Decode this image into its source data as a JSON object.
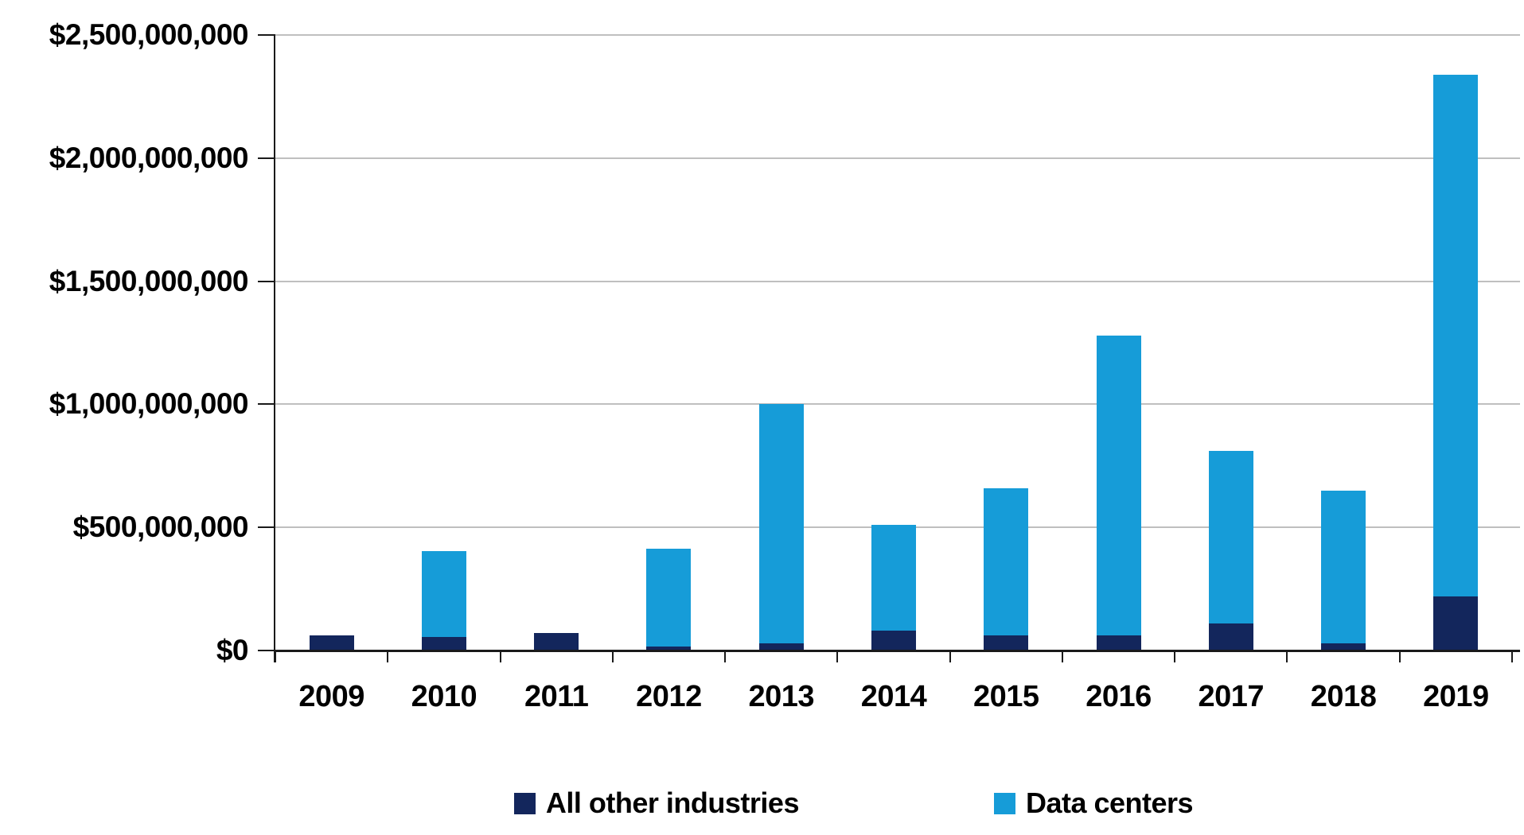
{
  "chart_data": {
    "type": "bar",
    "stacked": true,
    "categories": [
      "2009",
      "2010",
      "2011",
      "2012",
      "2013",
      "2014",
      "2015",
      "2016",
      "2017",
      "2018",
      "2019"
    ],
    "series": [
      {
        "name": "All other industries",
        "color": "#13265C",
        "values_usd": [
          60000000,
          55000000,
          70000000,
          15000000,
          30000000,
          80000000,
          60000000,
          60000000,
          110000000,
          30000000,
          220000000
        ]
      },
      {
        "name": "Data centers",
        "color": "#169CD8",
        "values_usd": [
          0,
          350000000,
          0,
          400000000,
          970000000,
          430000000,
          600000000,
          1220000000,
          700000000,
          620000000,
          2120000000
        ]
      }
    ],
    "y_axis": {
      "min": 0,
      "max": 2500000000,
      "tick_interval": 500000000,
      "tick_labels": [
        "$0",
        "$500,000,000",
        "$1,000,000,000",
        "$1,500,000,000",
        "$2,000,000,000",
        "$2,500,000,000"
      ]
    },
    "x_axis": {
      "tick_labels": [
        "2009",
        "2010",
        "2011",
        "2012",
        "2013",
        "2014",
        "2015",
        "2016",
        "2017",
        "2018",
        "2019"
      ]
    },
    "legend": {
      "position": "bottom",
      "entries": [
        "All other industries",
        "Data centers"
      ]
    },
    "grid": true
  },
  "colors": {
    "all_other_industries": "#13265C",
    "data_centers": "#169CD8",
    "gridline": "#BFBFBF",
    "axis": "#1A1A1A",
    "background": "#FFFFFF",
    "text": "#000000"
  }
}
